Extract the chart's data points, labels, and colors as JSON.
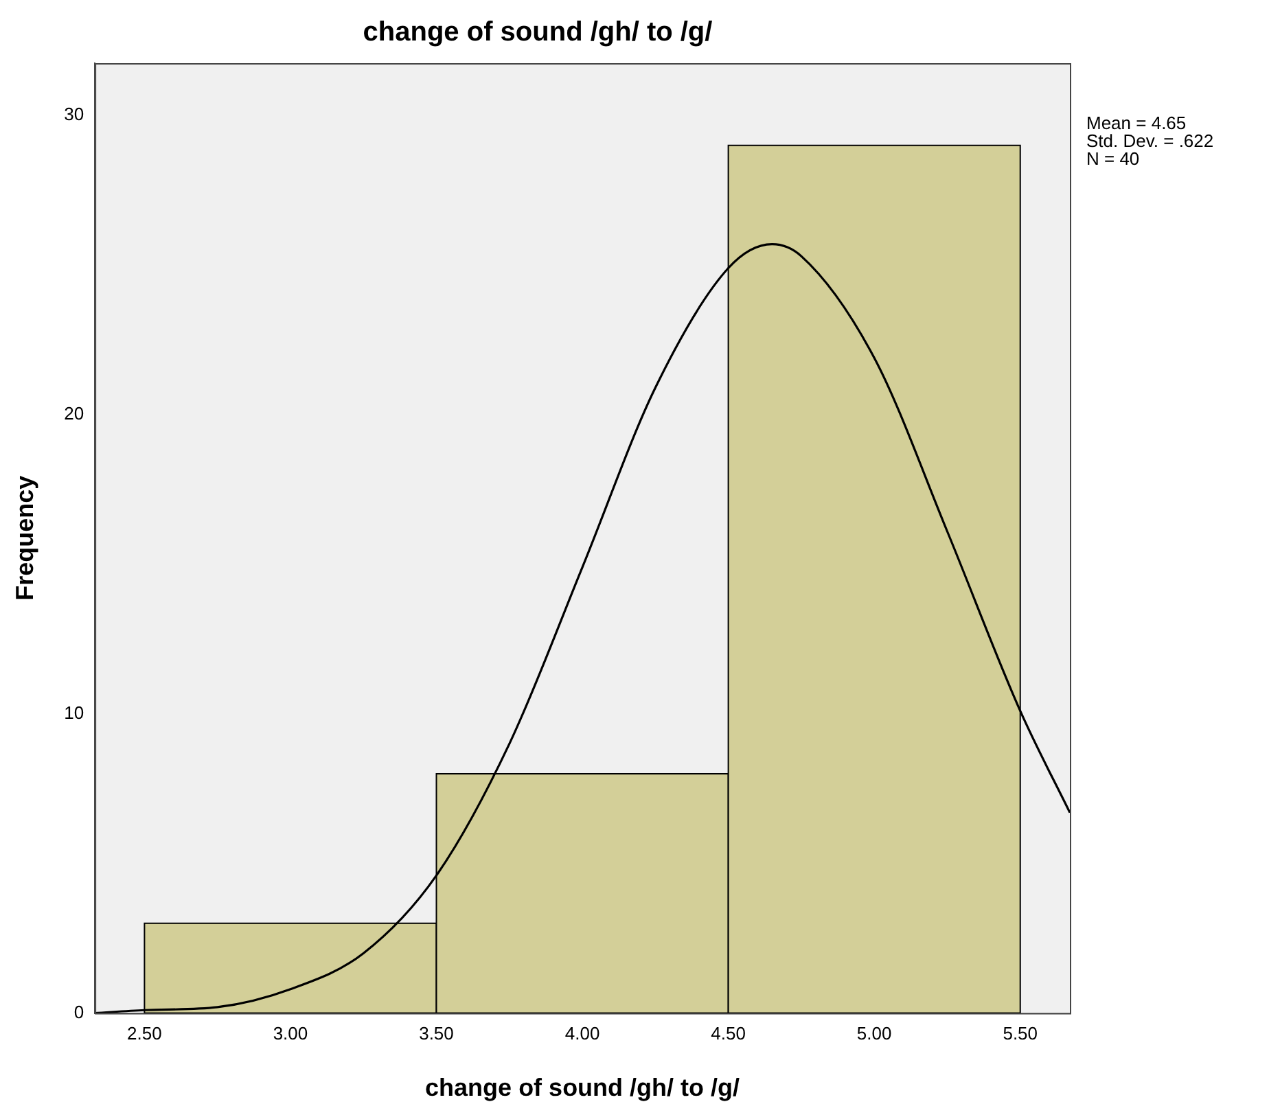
{
  "chart_data": {
    "type": "histogram",
    "title": "change of sound /gh/ to /g/",
    "xlabel": "change of sound /gh/ to /g/",
    "ylabel": "Frequency",
    "bins": [
      2.5,
      3.5,
      4.5,
      5.5
    ],
    "values": [
      3,
      8,
      29
    ],
    "color": "#d3cf98",
    "series": [
      {
        "type": "line",
        "color": "#000000",
        "x": [
          2.33,
          2.5,
          2.75,
          3.0,
          3.25,
          3.5,
          3.75,
          4.0,
          4.25,
          4.5,
          4.65,
          4.75,
          5.0,
          5.25,
          5.5,
          5.67
        ],
        "values": [
          0.0,
          0.1,
          0.2,
          0.8,
          2.0,
          4.6,
          9.0,
          14.9,
          20.9,
          24.9,
          25.7,
          25.3,
          21.9,
          16.1,
          10.1,
          6.7
        ]
      }
    ],
    "xlim": [
      2.33,
      5.67
    ],
    "ylim": [
      0,
      31.75
    ],
    "xticks": [
      {
        "value": 2.5,
        "label": "2.50"
      },
      {
        "value": 3.0,
        "label": "3.00"
      },
      {
        "value": 3.5,
        "label": "3.50"
      },
      {
        "value": 4.0,
        "label": "4.00"
      },
      {
        "value": 4.5,
        "label": "4.50"
      },
      {
        "value": 5.0,
        "label": "5.00"
      },
      {
        "value": 5.5,
        "label": "5.50"
      }
    ],
    "yticks": [
      0,
      10,
      20,
      30
    ],
    "annotations": [
      "Mean = 4.65",
      "Std. Dev. = .622",
      "N = 40"
    ],
    "grid": false,
    "legend": false,
    "marker": "none"
  }
}
